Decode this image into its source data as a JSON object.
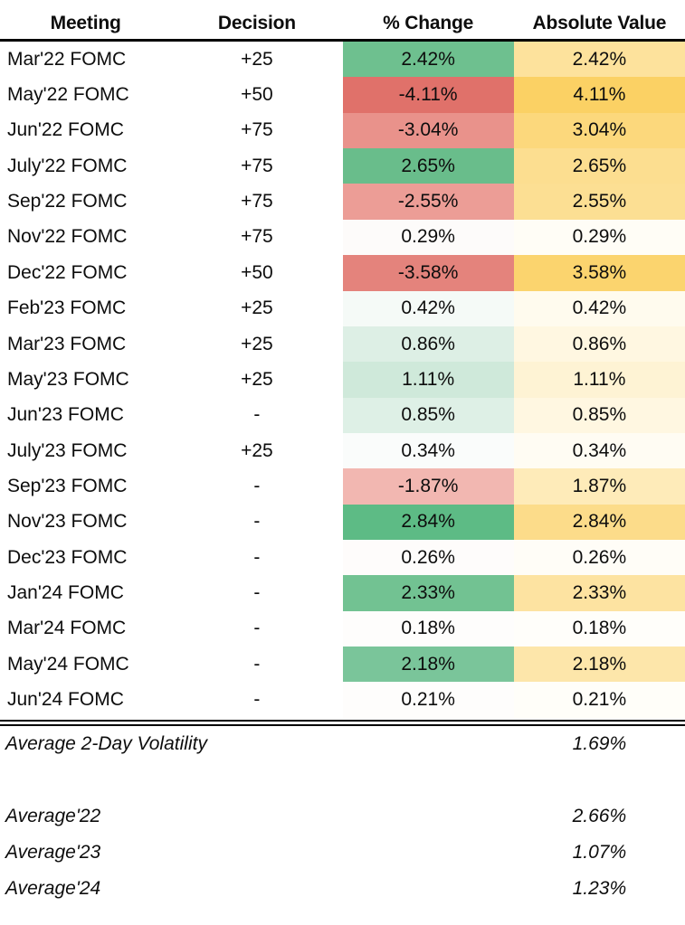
{
  "table": {
    "headers": [
      {
        "label": "Meeting"
      },
      {
        "label": "Decision"
      },
      {
        "label": "% Change"
      },
      {
        "label": "Absolute Value"
      }
    ],
    "rows": [
      {
        "meeting": "Mar'22 FOMC",
        "decision": "+25",
        "pct_change": "2.42%",
        "abs_value": "2.42%",
        "pct_color": "#6ec08f",
        "abs_color": "#fde29c"
      },
      {
        "meeting": "May'22 FOMC",
        "decision": "+50",
        "pct_change": "-4.11%",
        "abs_value": "4.11%",
        "pct_color": "#e0716a",
        "abs_color": "#fbd164"
      },
      {
        "meeting": "Jun'22 FOMC",
        "decision": "+75",
        "pct_change": "-3.04%",
        "abs_value": "3.04%",
        "pct_color": "#e9928b",
        "abs_color": "#fcd87c"
      },
      {
        "meeting": "July'22 FOMC",
        "decision": "+75",
        "pct_change": "2.65%",
        "abs_value": "2.65%",
        "pct_color": "#69bd8b",
        "abs_color": "#fcde90"
      },
      {
        "meeting": "Sep'22 FOMC",
        "decision": "+75",
        "pct_change": "-2.55%",
        "abs_value": "2.55%",
        "pct_color": "#ec9d96",
        "abs_color": "#fcdf93"
      },
      {
        "meeting": "Nov'22 FOMC",
        "decision": "+75",
        "pct_change": "0.29%",
        "abs_value": "0.29%",
        "pct_color": "#fdfbfa",
        "abs_color": "#fffdf6"
      },
      {
        "meeting": "Dec'22 FOMC",
        "decision": "+50",
        "pct_change": "-3.58%",
        "abs_value": "3.58%",
        "pct_color": "#e4837c",
        "abs_color": "#fbd46e"
      },
      {
        "meeting": "Feb'23 FOMC",
        "decision": "+25",
        "pct_change": "0.42%",
        "abs_value": "0.42%",
        "pct_color": "#f5faf7",
        "abs_color": "#fffbee"
      },
      {
        "meeting": "Mar'23 FOMC",
        "decision": "+25",
        "pct_change": "0.86%",
        "abs_value": "0.86%",
        "pct_color": "#ddefe5",
        "abs_color": "#fff7e1"
      },
      {
        "meeting": "May'23 FOMC",
        "decision": "+25",
        "pct_change": "1.11%",
        "abs_value": "1.11%",
        "pct_color": "#cfe9da",
        "abs_color": "#fef3d4"
      },
      {
        "meeting": "Jun'23 FOMC",
        "decision": "-",
        "pct_change": "0.85%",
        "abs_value": "0.85%",
        "pct_color": "#def0e6",
        "abs_color": "#fff7e1"
      },
      {
        "meeting": "July'23 FOMC",
        "decision": "+25",
        "pct_change": "0.34%",
        "abs_value": "0.34%",
        "pct_color": "#fafcfb",
        "abs_color": "#fffcf3"
      },
      {
        "meeting": "Sep'23 FOMC",
        "decision": "-",
        "pct_change": "-1.87%",
        "abs_value": "1.87%",
        "pct_color": "#f2b7b1",
        "abs_color": "#feebb9"
      },
      {
        "meeting": "Nov'23 FOMC",
        "decision": "-",
        "pct_change": "2.84%",
        "abs_value": "2.84%",
        "pct_color": "#5dbb85",
        "abs_color": "#fcdc8a"
      },
      {
        "meeting": "Dec'23 FOMC",
        "decision": "-",
        "pct_change": "0.26%",
        "abs_value": "0.26%",
        "pct_color": "#fefcfb",
        "abs_color": "#fffdf7"
      },
      {
        "meeting": "Jan'24 FOMC",
        "decision": "-",
        "pct_change": "2.33%",
        "abs_value": "2.33%",
        "pct_color": "#72c292",
        "abs_color": "#fde3a1"
      },
      {
        "meeting": "Mar'24 FOMC",
        "decision": "-",
        "pct_change": "0.18%",
        "abs_value": "0.18%",
        "pct_color": "#fefdfc",
        "abs_color": "#fffefa"
      },
      {
        "meeting": "May'24 FOMC",
        "decision": "-",
        "pct_change": "2.18%",
        "abs_value": "2.18%",
        "pct_color": "#7ac59a",
        "abs_color": "#fde6aa"
      },
      {
        "meeting": "Jun'24 FOMC",
        "decision": "-",
        "pct_change": "0.21%",
        "abs_value": "0.21%",
        "pct_color": "#fefdfc",
        "abs_color": "#fffef9"
      }
    ]
  },
  "summary": {
    "volatility": {
      "label": "Average 2-Day Volatility",
      "value": "1.69%"
    },
    "averages": [
      {
        "label": "Average'22",
        "value": "2.66%"
      },
      {
        "label": "Average'23",
        "value": "1.07%"
      },
      {
        "label": "Average'24",
        "value": "1.23%"
      }
    ]
  },
  "colors": {
    "positive_max_green": "#5dbb85",
    "negative_max_red": "#e0716a",
    "absolute_max_yellow": "#fbd164",
    "neutral_white": "#ffffff",
    "rule_black": "#000000"
  },
  "chart_data": {
    "type": "table",
    "columns": [
      "Meeting",
      "Decision",
      "% Change",
      "Absolute Value"
    ],
    "rows": [
      [
        "Mar'22 FOMC",
        "+25",
        2.42,
        2.42
      ],
      [
        "May'22 FOMC",
        "+50",
        -4.11,
        4.11
      ],
      [
        "Jun'22 FOMC",
        "+75",
        -3.04,
        3.04
      ],
      [
        "July'22 FOMC",
        "+75",
        2.65,
        2.65
      ],
      [
        "Sep'22 FOMC",
        "+75",
        -2.55,
        2.55
      ],
      [
        "Nov'22 FOMC",
        "+75",
        0.29,
        0.29
      ],
      [
        "Dec'22 FOMC",
        "+50",
        -3.58,
        3.58
      ],
      [
        "Feb'23 FOMC",
        "+25",
        0.42,
        0.42
      ],
      [
        "Mar'23 FOMC",
        "+25",
        0.86,
        0.86
      ],
      [
        "May'23 FOMC",
        "+25",
        1.11,
        1.11
      ],
      [
        "Jun'23 FOMC",
        "-",
        0.85,
        0.85
      ],
      [
        "July'23 FOMC",
        "+25",
        0.34,
        0.34
      ],
      [
        "Sep'23 FOMC",
        "-",
        -1.87,
        1.87
      ],
      [
        "Nov'23 FOMC",
        "-",
        2.84,
        2.84
      ],
      [
        "Dec'23 FOMC",
        "-",
        0.26,
        0.26
      ],
      [
        "Jan'24 FOMC",
        "-",
        2.33,
        2.33
      ],
      [
        "Mar'24 FOMC",
        "-",
        0.18,
        0.18
      ],
      [
        "May'24 FOMC",
        "-",
        2.18,
        2.18
      ],
      [
        "Jun'24 FOMC",
        "-",
        0.21,
        0.21
      ]
    ],
    "summary_stats": {
      "average_2_day_volatility_pct": 1.69,
      "average_2022_pct": 2.66,
      "average_2023_pct": 1.07,
      "average_2024_pct": 1.23
    },
    "layout_hints": {
      "pct_change_formatting": "diverging red(negative)-white(zero)-green(positive) cell fill",
      "absolute_value_formatting": "sequential white(low)-yellow(high) cell fill",
      "grid": "off",
      "header_rule": "thick single black line",
      "footer_rule": "double black line",
      "summary_style": "italic"
    }
  }
}
